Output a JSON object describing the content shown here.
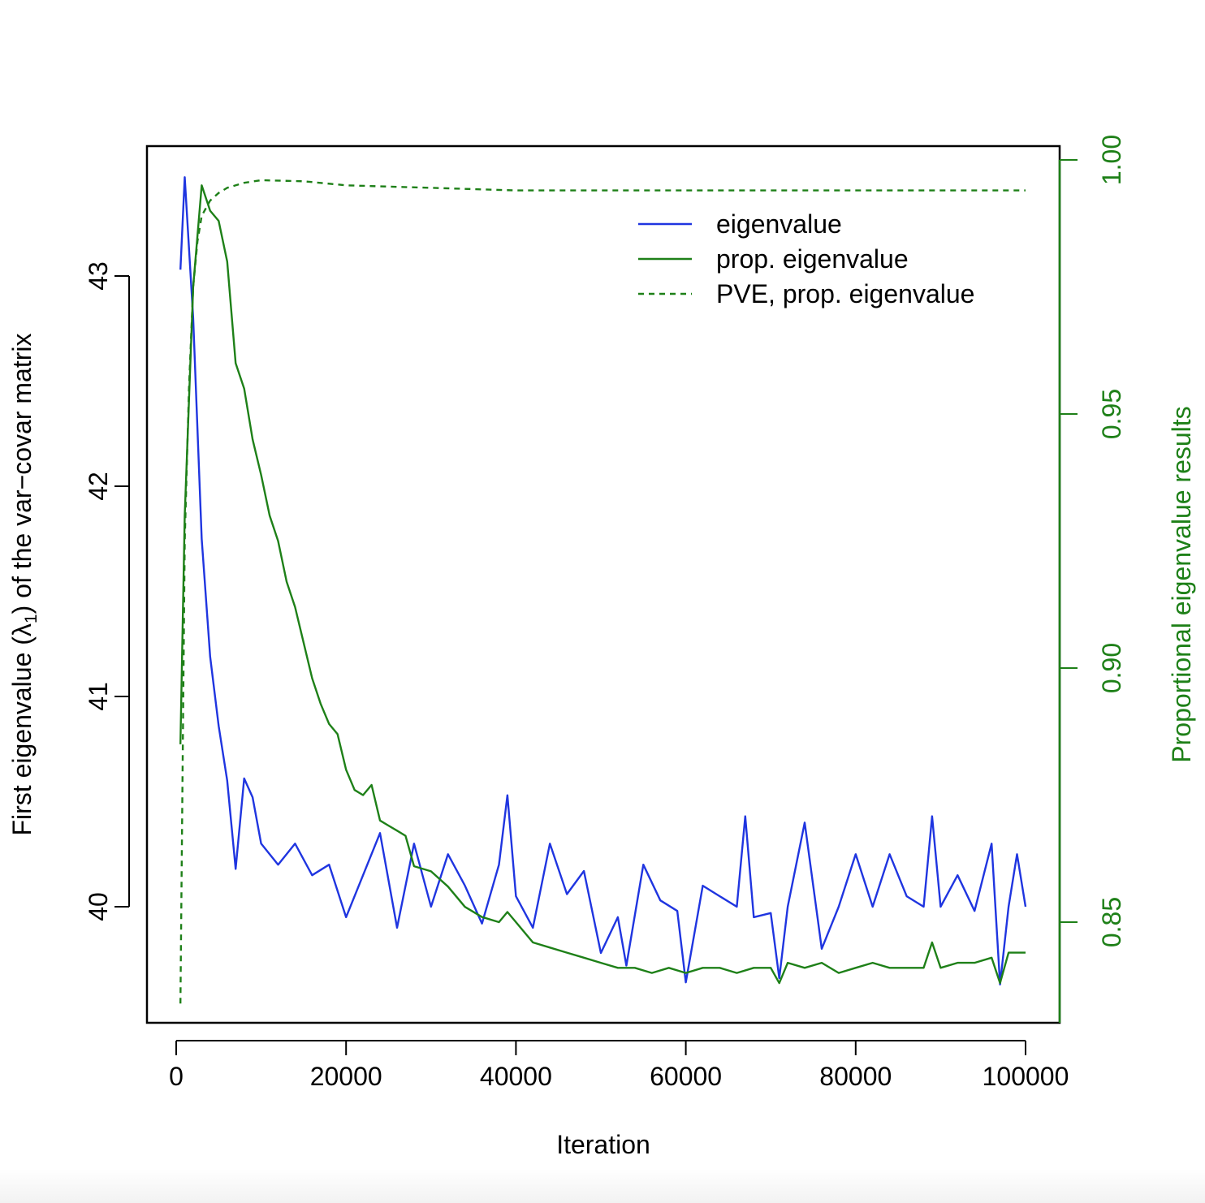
{
  "chart_data": {
    "type": "line",
    "title": "",
    "xlabel": "Iteration",
    "ylabel_left": "First eigenvalue (λ₁) of the var−covar matrix",
    "ylabel_left_parts": {
      "before": "First eigenvalue (",
      "lambda": "λ",
      "sub": "1",
      "after": ") of the var−covar matrix"
    },
    "ylabel_right": "Proportional eigenvalue results",
    "xlim": [
      0,
      100000
    ],
    "ylim_left": [
      39.5,
      43.5
    ],
    "ylim_right": [
      0.83,
      1.0
    ],
    "x_ticks": [
      0,
      20000,
      40000,
      60000,
      80000,
      100000
    ],
    "x_tick_labels": [
      "0",
      "20000",
      "40000",
      "60000",
      "80000",
      "100000"
    ],
    "y_left_ticks": [
      40,
      41,
      42,
      43
    ],
    "y_left_tick_labels": [
      "40",
      "41",
      "42",
      "43"
    ],
    "y_right_ticks": [
      0.85,
      0.9,
      0.95,
      1.0
    ],
    "y_right_tick_labels": [
      "0.85",
      "0.90",
      "0.95",
      "1.00"
    ],
    "legend_position": "top-right",
    "legend": [
      {
        "label": "eigenvalue",
        "color": "#1f35e0",
        "dash": "solid"
      },
      {
        "label": "prop. eigenvalue",
        "color": "#1e8018",
        "dash": "solid"
      },
      {
        "label": "PVE, prop. eigenvalue",
        "color": "#1e8018",
        "dash": "dashed"
      }
    ],
    "series": [
      {
        "name": "eigenvalue",
        "axis": "left",
        "color": "#1f35e0",
        "dash": "solid",
        "x": [
          500,
          1000,
          2000,
          3000,
          4000,
          5000,
          6000,
          7000,
          8000,
          9000,
          10000,
          12000,
          14000,
          16000,
          18000,
          20000,
          22000,
          24000,
          26000,
          28000,
          30000,
          32000,
          34000,
          36000,
          38000,
          39000,
          40000,
          42000,
          44000,
          46000,
          48000,
          50000,
          52000,
          53000,
          55000,
          57000,
          59000,
          60000,
          62000,
          64000,
          66000,
          67000,
          68000,
          70000,
          71000,
          72000,
          74000,
          76000,
          78000,
          80000,
          82000,
          84000,
          86000,
          88000,
          89000,
          90000,
          92000,
          94000,
          96000,
          97000,
          98000,
          99000,
          100000
        ],
        "y": [
          43.03,
          43.47,
          42.8,
          41.75,
          41.19,
          40.86,
          40.6,
          40.18,
          40.61,
          40.52,
          40.3,
          40.2,
          40.3,
          40.15,
          40.2,
          39.95,
          40.15,
          40.35,
          39.9,
          40.3,
          40.0,
          40.25,
          40.1,
          39.92,
          40.2,
          40.53,
          40.05,
          39.9,
          40.3,
          40.06,
          40.17,
          39.78,
          39.95,
          39.72,
          40.2,
          40.03,
          39.98,
          39.64,
          40.1,
          40.05,
          40.0,
          40.43,
          39.95,
          39.97,
          39.66,
          40.0,
          40.4,
          39.8,
          40.0,
          40.25,
          40.0,
          40.25,
          40.05,
          40.0,
          40.43,
          40.0,
          40.15,
          39.98,
          40.3,
          39.63,
          40.0,
          40.25,
          40.0
        ]
      },
      {
        "name": "prop. eigenvalue",
        "axis": "right",
        "color": "#1e8018",
        "dash": "solid",
        "x": [
          500,
          1000,
          2000,
          3000,
          4000,
          5000,
          6000,
          7000,
          8000,
          9000,
          10000,
          11000,
          12000,
          13000,
          14000,
          15000,
          16000,
          17000,
          18000,
          19000,
          20000,
          21000,
          22000,
          23000,
          24000,
          25000,
          26000,
          27000,
          28000,
          30000,
          32000,
          34000,
          36000,
          38000,
          39000,
          40000,
          42000,
          44000,
          46000,
          48000,
          50000,
          52000,
          54000,
          56000,
          58000,
          60000,
          62000,
          64000,
          66000,
          68000,
          70000,
          71000,
          72000,
          74000,
          76000,
          78000,
          80000,
          82000,
          84000,
          86000,
          88000,
          89000,
          90000,
          92000,
          94000,
          96000,
          97000,
          98000,
          99000,
          100000
        ],
        "y": [
          0.885,
          0.93,
          0.975,
          0.995,
          0.99,
          0.988,
          0.98,
          0.96,
          0.955,
          0.945,
          0.938,
          0.93,
          0.925,
          0.917,
          0.912,
          0.905,
          0.898,
          0.893,
          0.889,
          0.887,
          0.88,
          0.876,
          0.875,
          0.877,
          0.87,
          0.869,
          0.868,
          0.867,
          0.861,
          0.86,
          0.857,
          0.853,
          0.851,
          0.85,
          0.852,
          0.85,
          0.846,
          0.845,
          0.844,
          0.843,
          0.842,
          0.841,
          0.841,
          0.84,
          0.841,
          0.84,
          0.841,
          0.841,
          0.84,
          0.841,
          0.841,
          0.838,
          0.842,
          0.841,
          0.842,
          0.84,
          0.841,
          0.842,
          0.841,
          0.841,
          0.841,
          0.846,
          0.841,
          0.842,
          0.842,
          0.843,
          0.838,
          0.844,
          0.844,
          0.844
        ]
      },
      {
        "name": "PVE, prop. eigenvalue",
        "axis": "right",
        "color": "#1e8018",
        "dash": "dashed",
        "x": [
          500,
          1000,
          1500,
          2000,
          2500,
          3000,
          4000,
          5000,
          6000,
          8000,
          10000,
          15000,
          20000,
          30000,
          40000,
          50000,
          60000,
          70000,
          80000,
          90000,
          100000
        ],
        "y": [
          0.834,
          0.925,
          0.955,
          0.975,
          0.984,
          0.989,
          0.992,
          0.9935,
          0.9945,
          0.9955,
          0.996,
          0.9958,
          0.995,
          0.9945,
          0.994,
          0.994,
          0.994,
          0.994,
          0.994,
          0.994,
          0.994
        ]
      }
    ]
  }
}
